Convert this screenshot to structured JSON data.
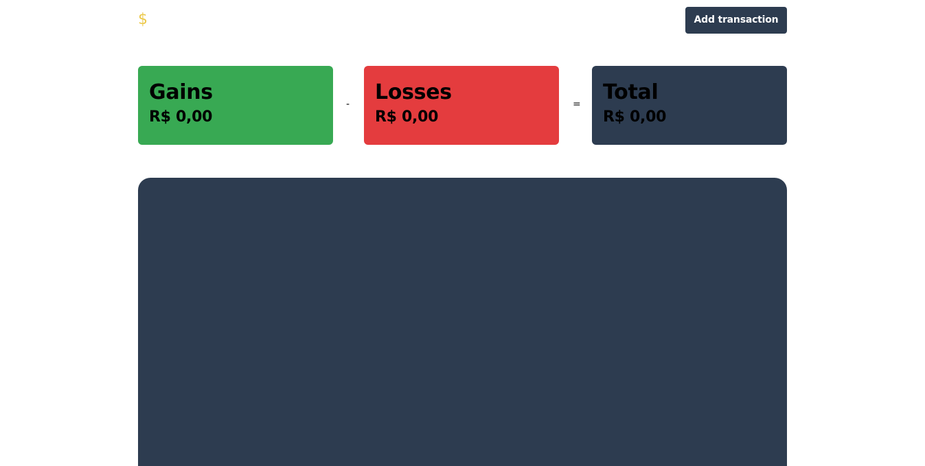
{
  "header": {
    "logo_symbol": "$",
    "add_transaction_label": "Add transaction"
  },
  "summary": {
    "gains": {
      "title": "Gains",
      "value": "R$ 0,00",
      "color": "#38a953"
    },
    "minus_operator": "-",
    "losses": {
      "title": "Losses",
      "value": "R$ 0,00",
      "color": "#e43c3e"
    },
    "equals_operator": "=",
    "total": {
      "title": "Total",
      "value": "R$ 0,00",
      "color": "#2d3c50"
    }
  },
  "colors": {
    "accent": "#ecc94b",
    "dark": "#2d3c50",
    "background": "#ffffff"
  }
}
